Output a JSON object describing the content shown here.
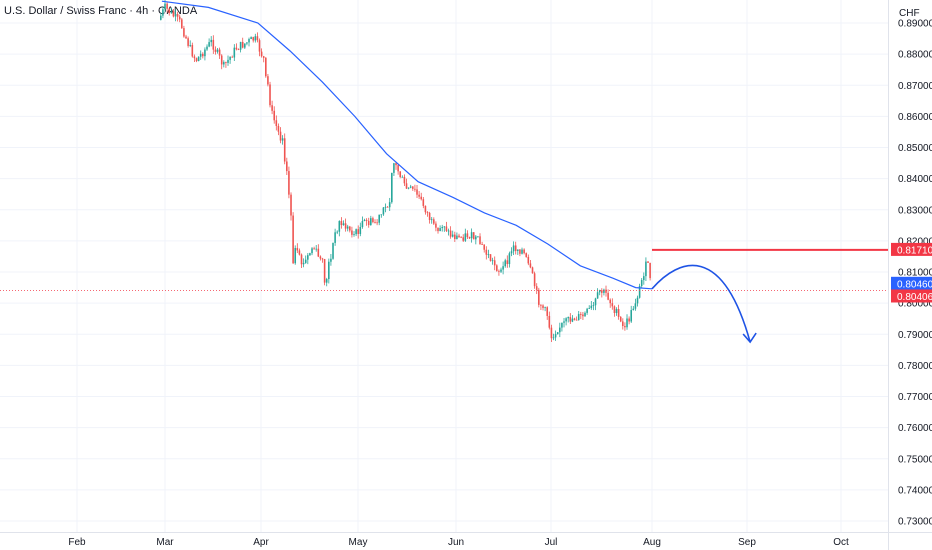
{
  "header": {
    "title": "U.S. Dollar / Swiss Franc · 4h · OANDA"
  },
  "price_axis": {
    "currency_label": "CHF"
  },
  "colors": {
    "up": "#26a69a",
    "down": "#ef5350",
    "moving_average": "#2962ff",
    "resistance_line": "#f23645",
    "forecast_arrow": "#1e53e5",
    "grid": "#f0f3fa",
    "axis_text": "#131722"
  },
  "chart_data": {
    "type": "candlestick",
    "symbol": "U.S. Dollar / Swiss Franc",
    "interval": "4h",
    "source": "OANDA",
    "currency": "CHF",
    "ylim": [
      0.727,
      0.893
    ],
    "x_ticks": [
      "Feb",
      "Mar",
      "Apr",
      "May",
      "Jun",
      "Jul",
      "Aug",
      "Sep",
      "Oct"
    ],
    "y_ticks": [
      "0.89000",
      "0.88000",
      "0.87000",
      "0.86000",
      "0.85000",
      "0.84000",
      "0.83000",
      "0.82000",
      "0.81000",
      "0.80000",
      "0.79000",
      "0.78000",
      "0.77000",
      "0.76000",
      "0.75000",
      "0.74000",
      "0.73000"
    ],
    "price_path": [
      {
        "date": "Feb 27",
        "price": 0.891
      },
      {
        "date": "Mar 1",
        "price": 0.895
      },
      {
        "date": "Mar 6",
        "price": 0.89
      },
      {
        "date": "Mar 9",
        "price": 0.882
      },
      {
        "date": "Mar 11",
        "price": 0.878
      },
      {
        "date": "Mar 16",
        "price": 0.884
      },
      {
        "date": "Mar 20",
        "price": 0.876
      },
      {
        "date": "Mar 24",
        "price": 0.882
      },
      {
        "date": "Mar 30",
        "price": 0.885
      },
      {
        "date": "Apr 2",
        "price": 0.878
      },
      {
        "date": "Apr 4",
        "price": 0.862
      },
      {
        "date": "Apr 7",
        "price": 0.853
      },
      {
        "date": "Apr 8",
        "price": 0.855
      },
      {
        "date": "Apr 11",
        "price": 0.818
      },
      {
        "date": "Apr 14",
        "price": 0.812
      },
      {
        "date": "Apr 17",
        "price": 0.818
      },
      {
        "date": "Apr 20",
        "price": 0.813
      },
      {
        "date": "Apr 21",
        "price": 0.805
      },
      {
        "date": "Apr 23",
        "price": 0.818
      },
      {
        "date": "Apr 25",
        "price": 0.826
      },
      {
        "date": "Apr 28",
        "price": 0.824
      },
      {
        "date": "Apr 30",
        "price": 0.822
      },
      {
        "date": "May 3",
        "price": 0.826
      },
      {
        "date": "May 7",
        "price": 0.826
      },
      {
        "date": "May 11",
        "price": 0.833
      },
      {
        "date": "May 12",
        "price": 0.846
      },
      {
        "date": "May 14",
        "price": 0.842
      },
      {
        "date": "May 16",
        "price": 0.837
      },
      {
        "date": "May 19",
        "price": 0.836
      },
      {
        "date": "May 22",
        "price": 0.831
      },
      {
        "date": "May 26",
        "price": 0.822
      },
      {
        "date": "May 28",
        "price": 0.826
      },
      {
        "date": "May 30",
        "price": 0.822
      },
      {
        "date": "Jun 2",
        "price": 0.821
      },
      {
        "date": "Jun 5",
        "price": 0.822
      },
      {
        "date": "Jun 8",
        "price": 0.82
      },
      {
        "date": "Jun 12",
        "price": 0.814
      },
      {
        "date": "Jun 15",
        "price": 0.81
      },
      {
        "date": "Jun 17",
        "price": 0.813
      },
      {
        "date": "Jun 19",
        "price": 0.818
      },
      {
        "date": "Jun 22",
        "price": 0.817
      },
      {
        "date": "Jun 25",
        "price": 0.809
      },
      {
        "date": "Jun 27",
        "price": 0.801
      },
      {
        "date": "Jun 30",
        "price": 0.796
      },
      {
        "date": "Jul 1",
        "price": 0.789
      },
      {
        "date": "Jul 3",
        "price": 0.792
      },
      {
        "date": "Jul 7",
        "price": 0.795
      },
      {
        "date": "Jul 11",
        "price": 0.796
      },
      {
        "date": "Jul 14",
        "price": 0.799
      },
      {
        "date": "Jul 16",
        "price": 0.804
      },
      {
        "date": "Jul 18",
        "price": 0.803
      },
      {
        "date": "Jul 21",
        "price": 0.797
      },
      {
        "date": "Jul 23",
        "price": 0.792
      },
      {
        "date": "Jul 25",
        "price": 0.795
      },
      {
        "date": "Jul 28",
        "price": 0.804
      },
      {
        "date": "Jul 30",
        "price": 0.812
      },
      {
        "date": "Jul 31",
        "price": 0.812
      },
      {
        "date": "Aug 1",
        "price": 0.8046
      }
    ],
    "moving_average_path": [
      {
        "date": "Feb 28",
        "price": 0.897
      },
      {
        "date": "Mar 15",
        "price": 0.895
      },
      {
        "date": "Mar 31",
        "price": 0.89
      },
      {
        "date": "Apr 10",
        "price": 0.881
      },
      {
        "date": "Apr 20",
        "price": 0.871
      },
      {
        "date": "Apr 30",
        "price": 0.86
      },
      {
        "date": "May 10",
        "price": 0.848
      },
      {
        "date": "May 20",
        "price": 0.839
      },
      {
        "date": "May 31",
        "price": 0.834
      },
      {
        "date": "Jun 10",
        "price": 0.829
      },
      {
        "date": "Jun 20",
        "price": 0.825
      },
      {
        "date": "Jun 30",
        "price": 0.819
      },
      {
        "date": "Jul 10",
        "price": 0.812
      },
      {
        "date": "Jul 20",
        "price": 0.808
      },
      {
        "date": "Jul 27",
        "price": 0.805
      },
      {
        "date": "Aug 1",
        "price": 0.8046
      }
    ],
    "forecast_path": [
      {
        "date": "Aug 1",
        "price": 0.8046
      },
      {
        "date": "Aug 10",
        "price": 0.8083
      },
      {
        "date": "Aug 24",
        "price": 0.8063
      },
      {
        "date": "Sep 2",
        "price": 0.7875
      }
    ],
    "resistance": {
      "price": 0.8171,
      "from": "Aug 1",
      "to": "axis"
    },
    "dotted_level": {
      "price": 0.8041
    },
    "price_labels": [
      {
        "text": "0.81710",
        "color": "#f23645"
      },
      {
        "text": "0.80460",
        "color": "#2962ff"
      },
      {
        "text": "0.80406",
        "color": "#f23645"
      }
    ]
  }
}
